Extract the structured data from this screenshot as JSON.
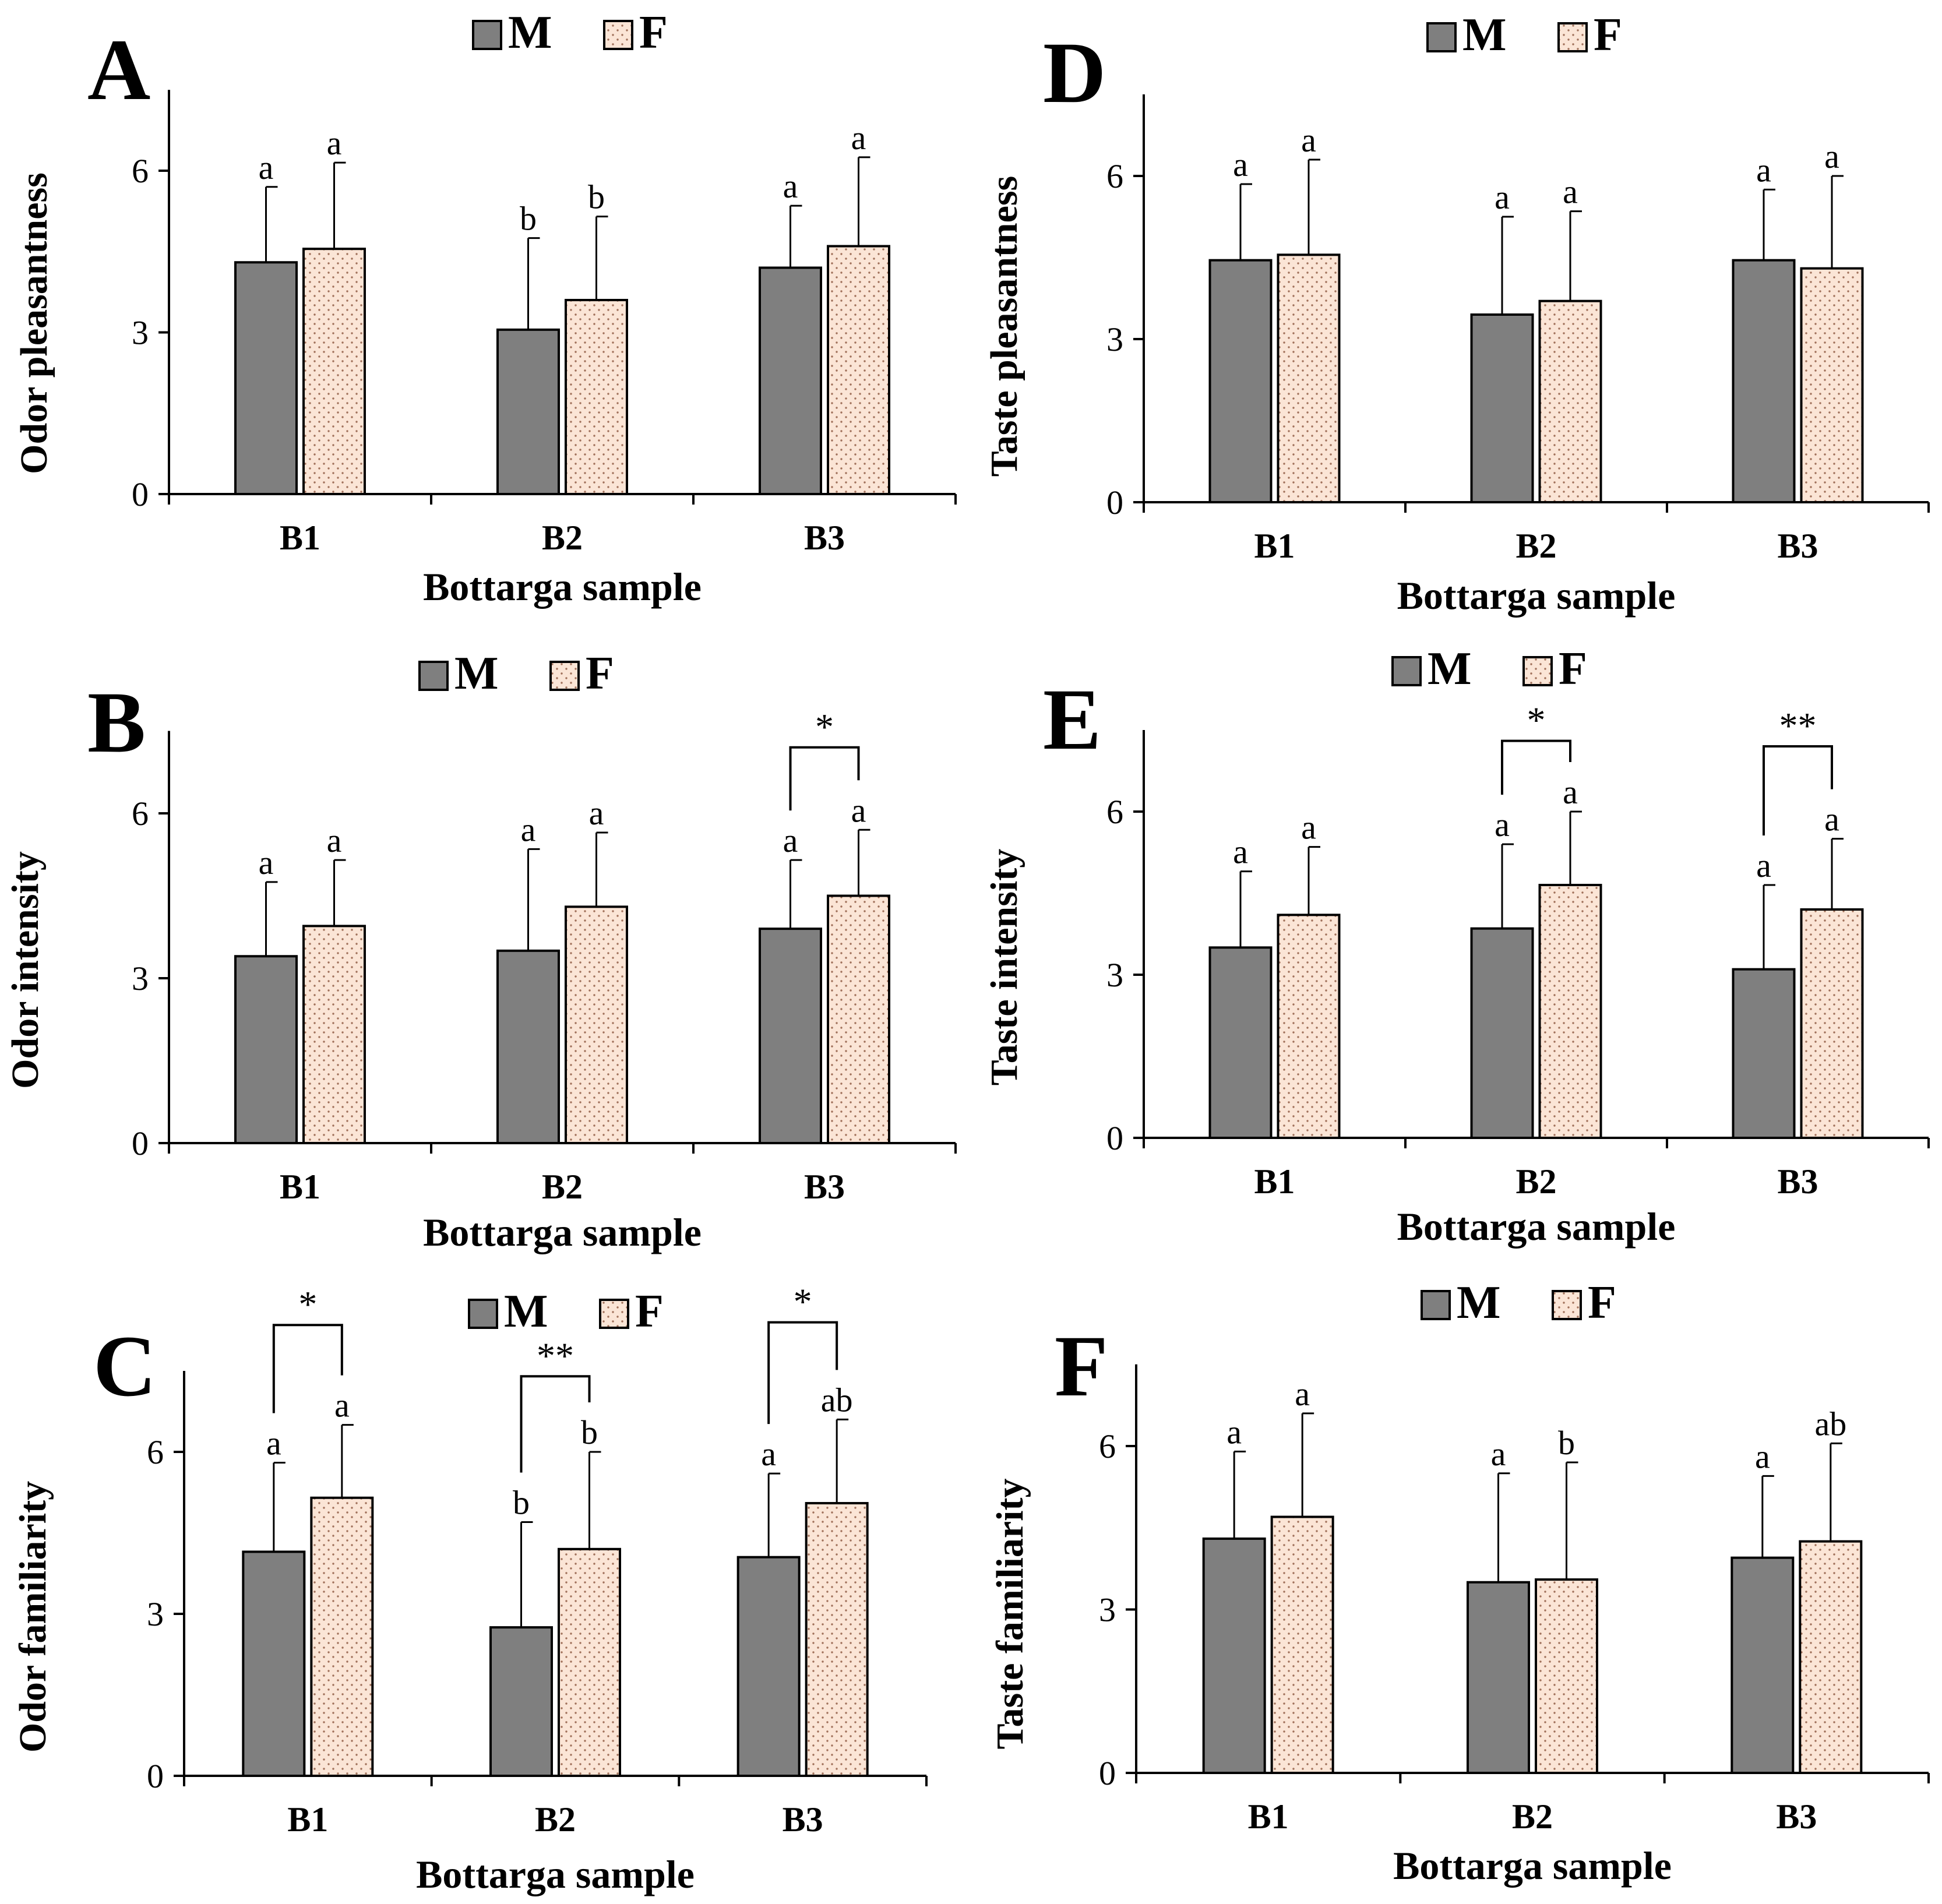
{
  "legend": [
    {
      "key": "M",
      "label": "M",
      "color": "#7f7f7f",
      "pattern": "solid"
    },
    {
      "key": "F",
      "label": "F",
      "color": "#fbe5d6",
      "pattern": "dotted"
    }
  ],
  "chart_data": [
    {
      "panel": "A",
      "type": "bar",
      "categories": [
        "B1",
        "B2",
        "B3"
      ],
      "xlabel": "Bottarga sample",
      "ylabel": "Odor  pleasantness",
      "ylim": [
        0,
        7.5
      ],
      "yticks": [
        0,
        3,
        6
      ],
      "legend_position": "top",
      "series": [
        {
          "name": "M",
          "values": [
            4.3,
            3.05,
            4.2
          ],
          "errors": [
            1.4,
            1.7,
            1.15
          ],
          "labels": [
            "a",
            "b",
            "a"
          ]
        },
        {
          "name": "F",
          "values": [
            4.55,
            3.6,
            4.6
          ],
          "errors": [
            1.6,
            1.55,
            1.65
          ],
          "labels": [
            "a",
            "b",
            "a"
          ]
        }
      ],
      "significance": []
    },
    {
      "panel": "B",
      "type": "bar",
      "categories": [
        "B1",
        "B2",
        "B3"
      ],
      "xlabel": "Bottarga sample",
      "ylabel": "Odor intensity",
      "ylim": [
        0,
        7.5
      ],
      "yticks": [
        0,
        3,
        6
      ],
      "legend_position": "top",
      "series": [
        {
          "name": "M",
          "values": [
            3.4,
            3.5,
            3.9
          ],
          "errors": [
            1.35,
            1.85,
            1.25
          ],
          "labels": [
            "a",
            "a",
            "a"
          ]
        },
        {
          "name": "F",
          "values": [
            3.95,
            4.3,
            4.5
          ],
          "errors": [
            1.2,
            1.35,
            1.2
          ],
          "labels": [
            "a",
            "a",
            "a"
          ]
        }
      ],
      "significance": [
        {
          "category": 2,
          "label": "*",
          "y": 7.2
        }
      ]
    },
    {
      "panel": "C",
      "type": "bar",
      "categories": [
        "B1",
        "B2",
        "B3"
      ],
      "xlabel": "Bottarga sample",
      "ylabel": "Odor  familiarity",
      "ylim": [
        0,
        7.5
      ],
      "yticks": [
        0,
        3,
        6
      ],
      "legend_position": "top",
      "series": [
        {
          "name": "M",
          "values": [
            4.15,
            2.75,
            4.05
          ],
          "errors": [
            1.65,
            1.95,
            1.55
          ],
          "labels": [
            "a",
            "b",
            "a"
          ]
        },
        {
          "name": "F",
          "values": [
            5.15,
            4.2,
            5.05
          ],
          "errors": [
            1.35,
            1.8,
            1.55
          ],
          "labels": [
            "a",
            "b",
            "ab"
          ]
        }
      ],
      "significance": [
        {
          "category": 0,
          "label": "*",
          "y": 8.35
        },
        {
          "category": 1,
          "label": "**",
          "y": 7.4
        },
        {
          "category": 2,
          "label": "*",
          "y": 8.4
        }
      ]
    },
    {
      "panel": "D",
      "type": "bar",
      "categories": [
        "B1",
        "B2",
        "B3"
      ],
      "xlabel": "Bottarga sample",
      "ylabel": "Taste pleasantness",
      "ylim": [
        0,
        7.5
      ],
      "yticks": [
        0,
        3,
        6
      ],
      "legend_position": "top",
      "series": [
        {
          "name": "M",
          "values": [
            4.45,
            3.45,
            4.45
          ],
          "errors": [
            1.4,
            1.8,
            1.3
          ],
          "labels": [
            "a",
            "a",
            "a"
          ]
        },
        {
          "name": "F",
          "values": [
            4.55,
            3.7,
            4.3
          ],
          "errors": [
            1.75,
            1.65,
            1.7
          ],
          "labels": [
            "a",
            "a",
            "a"
          ]
        }
      ],
      "significance": []
    },
    {
      "panel": "E",
      "type": "bar",
      "categories": [
        "B1",
        "B2",
        "B3"
      ],
      "xlabel": "Bottarga sample",
      "ylabel": "Taste intensity",
      "ylim": [
        0,
        7.5
      ],
      "yticks": [
        0,
        3,
        6
      ],
      "legend_position": "top",
      "series": [
        {
          "name": "M",
          "values": [
            3.5,
            3.85,
            3.1
          ],
          "errors": [
            1.4,
            1.55,
            1.55
          ],
          "labels": [
            "a",
            "a",
            "a"
          ]
        },
        {
          "name": "F",
          "values": [
            4.1,
            4.65,
            4.2
          ],
          "errors": [
            1.25,
            1.35,
            1.3
          ],
          "labels": [
            "a",
            "a",
            "a"
          ]
        }
      ],
      "significance": [
        {
          "category": 1,
          "label": "*",
          "y": 7.3
        },
        {
          "category": 2,
          "label": "**",
          "y": 7.2
        }
      ]
    },
    {
      "panel": "F",
      "type": "bar",
      "categories": [
        "B1",
        "B2",
        "B3"
      ],
      "xlabel": "Bottarga sample",
      "ylabel": "Taste familiarity",
      "ylim": [
        0,
        7.5
      ],
      "yticks": [
        0,
        3,
        6
      ],
      "legend_position": "top",
      "series": [
        {
          "name": "M",
          "values": [
            4.3,
            3.5,
            3.95
          ],
          "errors": [
            1.6,
            2.0,
            1.5
          ],
          "labels": [
            "a",
            "a",
            "a"
          ]
        },
        {
          "name": "F",
          "values": [
            4.7,
            3.55,
            4.25
          ],
          "errors": [
            1.9,
            2.15,
            1.8
          ],
          "labels": [
            "a",
            "b",
            "ab"
          ]
        }
      ],
      "significance": []
    }
  ]
}
